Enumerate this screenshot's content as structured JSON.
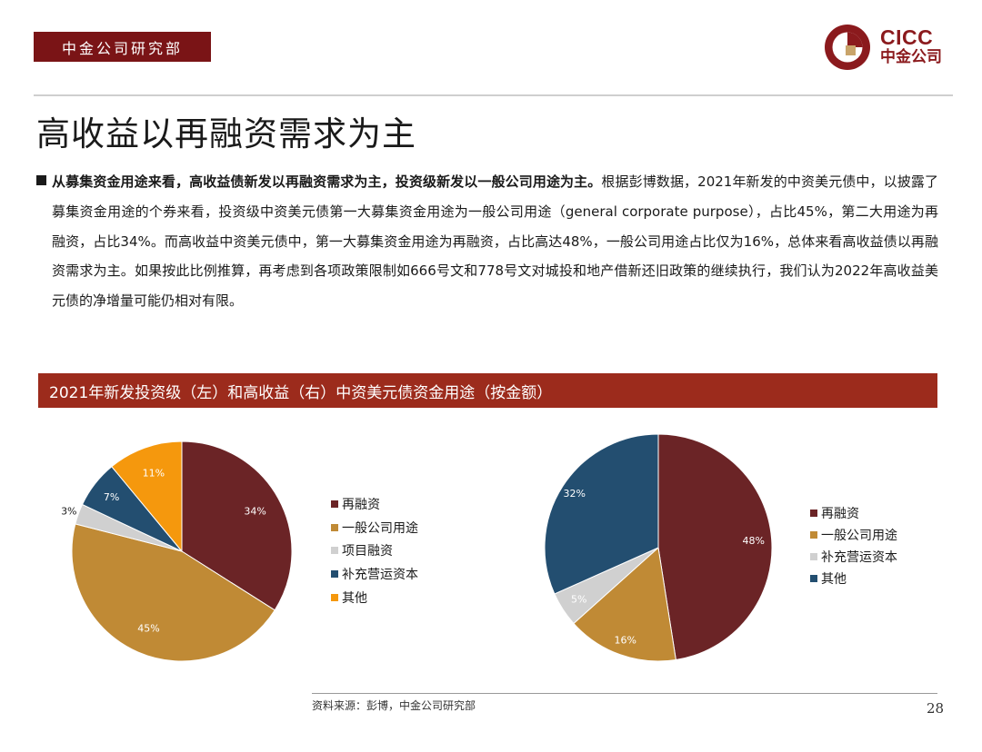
{
  "header": {
    "dept_tag": "中金公司研究部",
    "logo_en": "CICC",
    "logo_cn": "中金公司"
  },
  "slide": {
    "title": "高收益以再融资需求为主",
    "lead": "从募集资金用途来看，高收益债新发以再融资需求为主，投资级新发以一般公司用途为主。",
    "body": "根据彭博数据，2021年新发的中资美元债中，以披露了募集资金用途的个券来看，投资级中资美元债第一大募集资金用途为一般公司用途（general corporate purpose），占比45%，第二大用途为再融资，占比34%。而高收益中资美元债中，第一大募集资金用途为再融资，占比高达48%，一般公司用途占比仅为16%，总体来看高收益债以再融资需求为主。如果按此比例推算，再考虑到各项政策限制如666号文和778号文对城投和地产借新还旧政策的继续执行，我们认为2022年高收益美元债的净增量可能仍相对有限。"
  },
  "chart_banner": "2021年新发投资级（左）和高收益（右）中资美元债资金用途（按金额）",
  "chart_data": [
    {
      "type": "pie",
      "title": "",
      "categories": [
        "再融资",
        "一般公司用途",
        "项目融资",
        "补充营运资本",
        "其他"
      ],
      "values": [
        34,
        45,
        3,
        7,
        11
      ],
      "labels": [
        "34%",
        "45%",
        "3%",
        "7%",
        "11%"
      ],
      "colors": [
        "#6b2426",
        "#c08a35",
        "#d0d0d0",
        "#234e70",
        "#f5980d"
      ],
      "legend_position": "right"
    },
    {
      "type": "pie",
      "title": "",
      "categories": [
        "再融资",
        "一般公司用途",
        "补充营运资本",
        "其他"
      ],
      "values": [
        48,
        16,
        5,
        32
      ],
      "labels": [
        "48%",
        "16%",
        "5%",
        "32%"
      ],
      "colors": [
        "#6b2426",
        "#c08a35",
        "#d0d0d0",
        "#234e70"
      ],
      "legend_position": "right"
    }
  ],
  "footer": {
    "source": "资料来源：彭博，中金公司研究部",
    "page_number": "28"
  }
}
